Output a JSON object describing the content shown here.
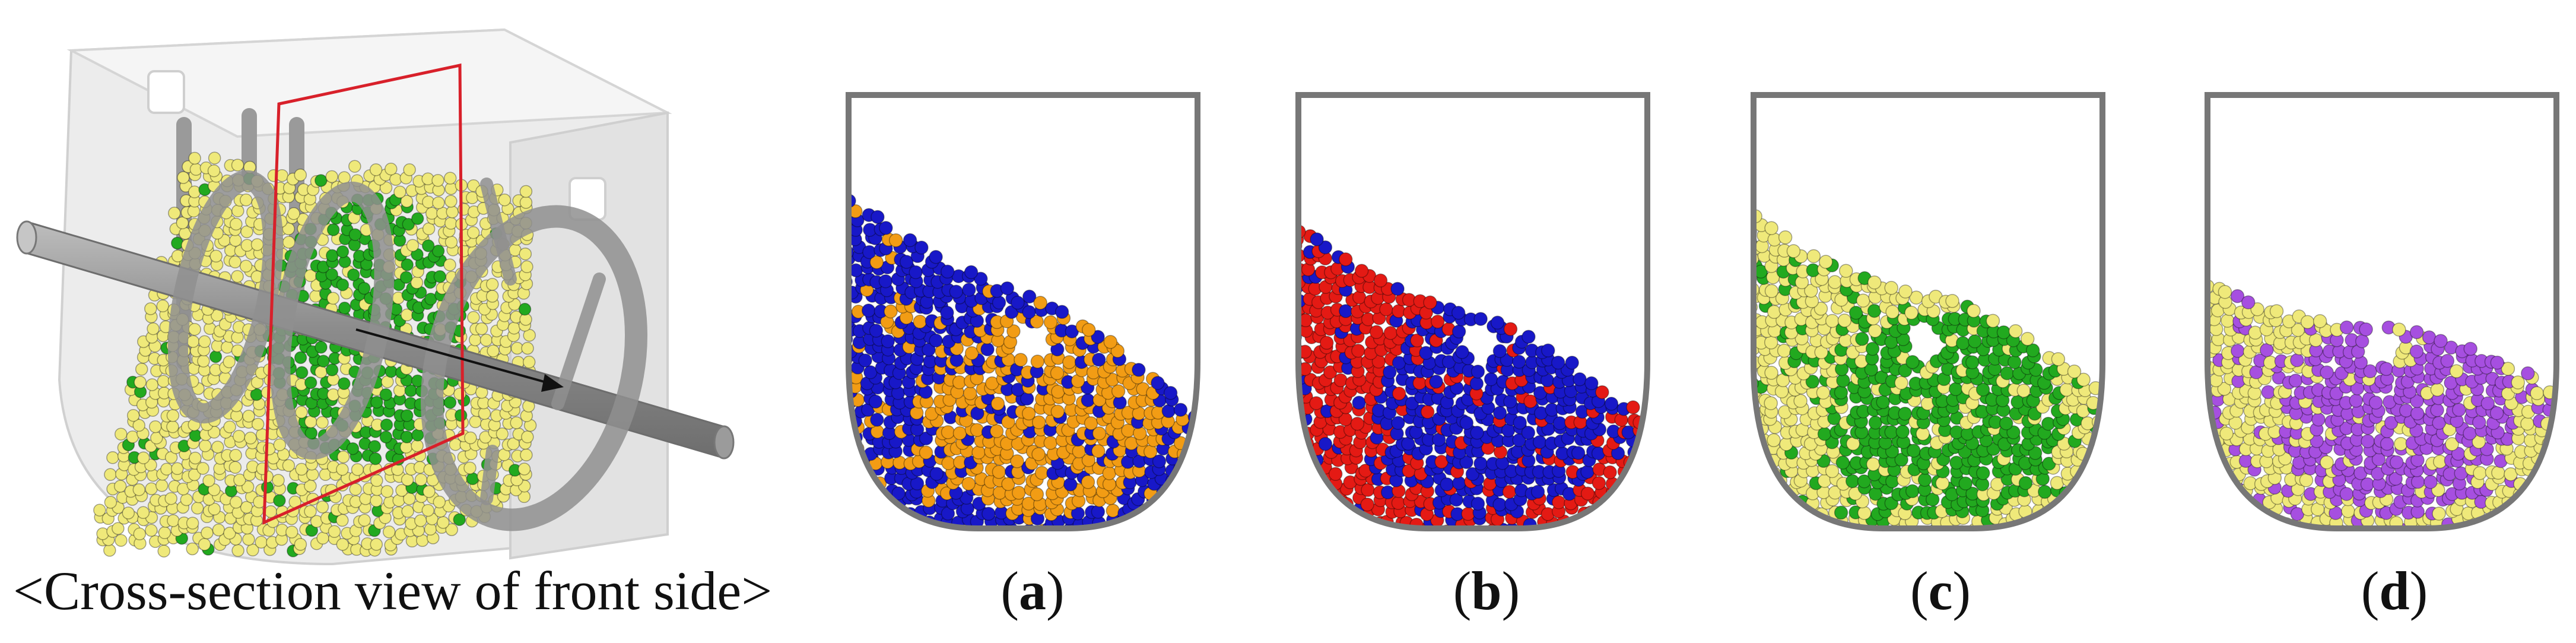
{
  "colors": {
    "yellow": "#efe97a",
    "green": "#22a91f",
    "blue": "#1818c8",
    "orange": "#f29c14",
    "red": "#e41a14",
    "purple": "#a64fe0",
    "outline": "#777777",
    "section_plane": "#d8202a"
  },
  "captions": {
    "main": "<Cross-section view of front side>",
    "a_open": "(",
    "a_letter": "a",
    "a_close": ")",
    "b_open": "(",
    "b_letter": "b",
    "b_close": ")",
    "c_open": "(",
    "c_letter": "c",
    "c_close": ")",
    "d_open": "(",
    "d_letter": "d",
    "d_close": ")"
  },
  "panels": [
    {
      "id": "a",
      "primary": "orange",
      "secondary": "blue"
    },
    {
      "id": "b",
      "primary": "blue",
      "secondary": "red"
    },
    {
      "id": "c",
      "primary": "green",
      "secondary": "yellow"
    },
    {
      "id": "d",
      "primary": "purple",
      "secondary": "yellow"
    }
  ]
}
